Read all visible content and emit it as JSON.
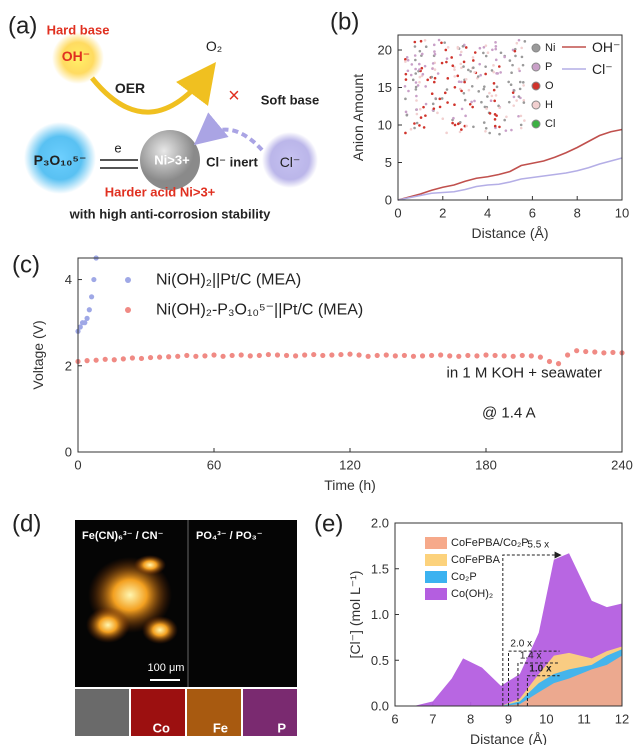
{
  "diagram": {
    "panel": "(a)",
    "hard_base": "Hard base",
    "oh": "OH⁻",
    "oer": "OER",
    "o2": "O₂",
    "cross": "×",
    "soft_base": "Soft base",
    "p3o10": "P₃O₁₀⁵⁻",
    "ni": "Ni>3+",
    "e": "e",
    "cl_inert": "Cl⁻ inert",
    "cl": "Cl⁻",
    "harder_acid": "Harder acid Ni>3+",
    "caption": "with high anti-corrosion stability"
  },
  "micrograph": {
    "panel": "(d)",
    "label_left": "Fe(CN)₆³⁻ / CN⁻",
    "label_right": "PO₄³⁻ / PO₃⁻",
    "scale_bar": "100 μm",
    "maps": [
      "Co",
      "Fe",
      "P"
    ]
  },
  "chart_data": [
    {
      "type": "line",
      "panel": "(b)",
      "x_label": "Distance (Å)",
      "y_label": "Anion Amount",
      "xlim": [
        0,
        10
      ],
      "ylim": [
        0,
        22
      ],
      "xticks": [
        0,
        2,
        4,
        6,
        8,
        10
      ],
      "yticks": [
        0,
        5,
        10,
        15,
        20
      ],
      "legend": "upper right",
      "x": [
        0,
        0.5,
        1,
        1.5,
        2,
        2.5,
        3,
        3.5,
        4,
        4.5,
        5,
        5.5,
        6,
        6.5,
        7,
        7.5,
        8,
        8.5,
        9,
        9.5,
        10
      ],
      "series": [
        {
          "name": "OH⁻",
          "color": "#c0504d",
          "values": [
            0,
            0.4,
            0.8,
            1.3,
            1.7,
            2.0,
            2.5,
            2.9,
            3.1,
            3.4,
            3.8,
            4.6,
            4.9,
            5.2,
            5.7,
            6.3,
            7.0,
            7.8,
            8.6,
            9.1,
            9.4
          ]
        },
        {
          "name": "Cl⁻",
          "color": "#b4aee6",
          "values": [
            0,
            0.3,
            0.6,
            0.9,
            1.0,
            1.1,
            1.4,
            1.8,
            2.0,
            2.1,
            2.4,
            2.8,
            3.0,
            3.2,
            3.4,
            3.6,
            3.9,
            4.3,
            4.8,
            5.2,
            5.6
          ]
        }
      ],
      "inset_legend": [
        {
          "name": "Ni",
          "color": "#9a9a9a"
        },
        {
          "name": "P",
          "color": "#c9a0c8"
        },
        {
          "name": "O",
          "color": "#d0342c"
        },
        {
          "name": "H",
          "color": "#f2d0d0"
        },
        {
          "name": "Cl",
          "color": "#3cb043"
        }
      ]
    },
    {
      "type": "scatter",
      "panel": "(c)",
      "x_label": "Time (h)",
      "y_label": "Voltage (V)",
      "xlim": [
        0,
        240
      ],
      "ylim": [
        0,
        4.5
      ],
      "xticks": [
        0,
        60,
        120,
        180,
        240
      ],
      "yticks": [
        0,
        2,
        4
      ],
      "legend": "upper left",
      "annotations": [
        "in 1 M KOH + seawater",
        "@ 1.4 A"
      ],
      "series": [
        {
          "name": "Ni(OH)₂||Pt/C (MEA)",
          "color": "#9fa8e6",
          "x": [
            0,
            1,
            2,
            3,
            4,
            5,
            6,
            7,
            8
          ],
          "values": [
            2.8,
            2.9,
            3.0,
            3.0,
            3.1,
            3.3,
            3.6,
            4.0,
            4.5
          ]
        },
        {
          "name": "Ni(OH)₂-P₃O₁₀⁵⁻||Pt/C (MEA)",
          "color": "#f08a84",
          "x": [
            0,
            4,
            8,
            12,
            16,
            20,
            24,
            28,
            32,
            36,
            40,
            44,
            48,
            52,
            56,
            60,
            64,
            68,
            72,
            76,
            80,
            84,
            88,
            92,
            96,
            100,
            104,
            108,
            112,
            116,
            120,
            124,
            128,
            132,
            136,
            140,
            144,
            148,
            152,
            156,
            160,
            164,
            168,
            172,
            176,
            180,
            184,
            188,
            192,
            196,
            200,
            204,
            208,
            212,
            216,
            220,
            224,
            228,
            232,
            236,
            240
          ],
          "values": [
            2.1,
            2.12,
            2.13,
            2.15,
            2.14,
            2.16,
            2.18,
            2.17,
            2.19,
            2.2,
            2.21,
            2.22,
            2.24,
            2.22,
            2.23,
            2.25,
            2.22,
            2.24,
            2.25,
            2.23,
            2.24,
            2.26,
            2.25,
            2.24,
            2.23,
            2.25,
            2.26,
            2.24,
            2.25,
            2.26,
            2.27,
            2.25,
            2.22,
            2.24,
            2.25,
            2.23,
            2.24,
            2.22,
            2.23,
            2.24,
            2.25,
            2.23,
            2.22,
            2.24,
            2.23,
            2.25,
            2.24,
            2.23,
            2.22,
            2.24,
            2.23,
            2.2,
            2.1,
            2.05,
            2.25,
            2.35,
            2.33,
            2.32,
            2.3,
            2.31,
            2.3
          ]
        }
      ]
    },
    {
      "type": "area",
      "panel": "(e)",
      "x_label": "Distance (Å)",
      "y_label": "[Cl⁻] (mol L⁻¹)",
      "xlim": [
        6,
        12
      ],
      "ylim": [
        0,
        2
      ],
      "xticks": [
        6,
        7,
        8,
        9,
        10,
        11,
        12
      ],
      "yticks": [
        {
          "value": 0,
          "label": "0.0"
        },
        {
          "value": 0.5,
          "label": "0.5"
        },
        {
          "value": 1,
          "label": "1.0"
        },
        {
          "value": 1.5,
          "label": "1.5"
        },
        {
          "value": 2,
          "label": "2.0"
        }
      ],
      "legend": "upper left",
      "annotations": [
        "5.5 x",
        "2.0 x",
        "1.4 x",
        "1.0 x"
      ],
      "x": [
        6,
        6.5,
        7,
        7.5,
        7.8,
        8.3,
        8.8,
        9.3,
        9.8,
        10.2,
        10.6,
        11.2,
        11.6,
        12
      ],
      "series": [
        {
          "name": "CoFePBA/Co₂P",
          "color": "#f6a98a",
          "values": [
            0,
            0,
            0,
            0,
            0,
            0,
            0,
            0.02,
            0.15,
            0.25,
            0.3,
            0.4,
            0.45,
            0.55
          ]
        },
        {
          "name": "CoFePBA",
          "color": "#fcd27c",
          "values": [
            0,
            0,
            0,
            0,
            0,
            0,
            0,
            0.08,
            0.35,
            0.55,
            0.58,
            0.52,
            0.6,
            0.65
          ]
        },
        {
          "name": "Co₂P",
          "color": "#3bb2f0",
          "values": [
            0,
            0,
            0,
            0,
            0,
            0,
            0,
            0.05,
            0.25,
            0.35,
            0.4,
            0.45,
            0.55,
            0.62
          ]
        },
        {
          "name": "Co(OH)₂",
          "color": "#b45ee0",
          "values": [
            0,
            0,
            0.05,
            0.3,
            0.52,
            0.42,
            0.22,
            0.35,
            0.8,
            1.6,
            1.67,
            1.15,
            1.08,
            1.12
          ]
        }
      ]
    }
  ]
}
